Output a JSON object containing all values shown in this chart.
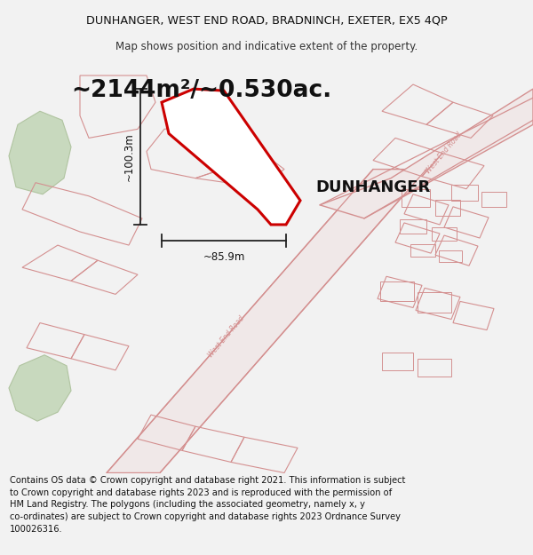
{
  "title_line1": "DUNHANGER, WEST END ROAD, BRADNINCH, EXETER, EX5 4QP",
  "title_line2": "Map shows position and indicative extent of the property.",
  "area_text": "~2144m²/~0.530ac.",
  "property_label": "DUNHANGER",
  "dim_width": "~85.9m",
  "dim_height": "~100.3m",
  "footer_text": "Contains OS data © Crown copyright and database right 2021. This information is subject to Crown copyright and database rights 2023 and is reproduced with the permission of HM Land Registry. The polygons (including the associated geometry, namely x, y co-ordinates) are subject to Crown copyright and database rights 2023 Ordnance Survey 100026316.",
  "bg_color": "#f2f2f2",
  "map_bg": "#ffffff",
  "road_color": "#d49090",
  "road_fill": "#f0e8e8",
  "property_outline_color": "#cc0000",
  "property_fill_color": "#ffffff",
  "green_color": "#c8d9be",
  "green_edge": "#b0c4a0",
  "dim_line_color": "#222222",
  "separator_color": "#cccccc"
}
